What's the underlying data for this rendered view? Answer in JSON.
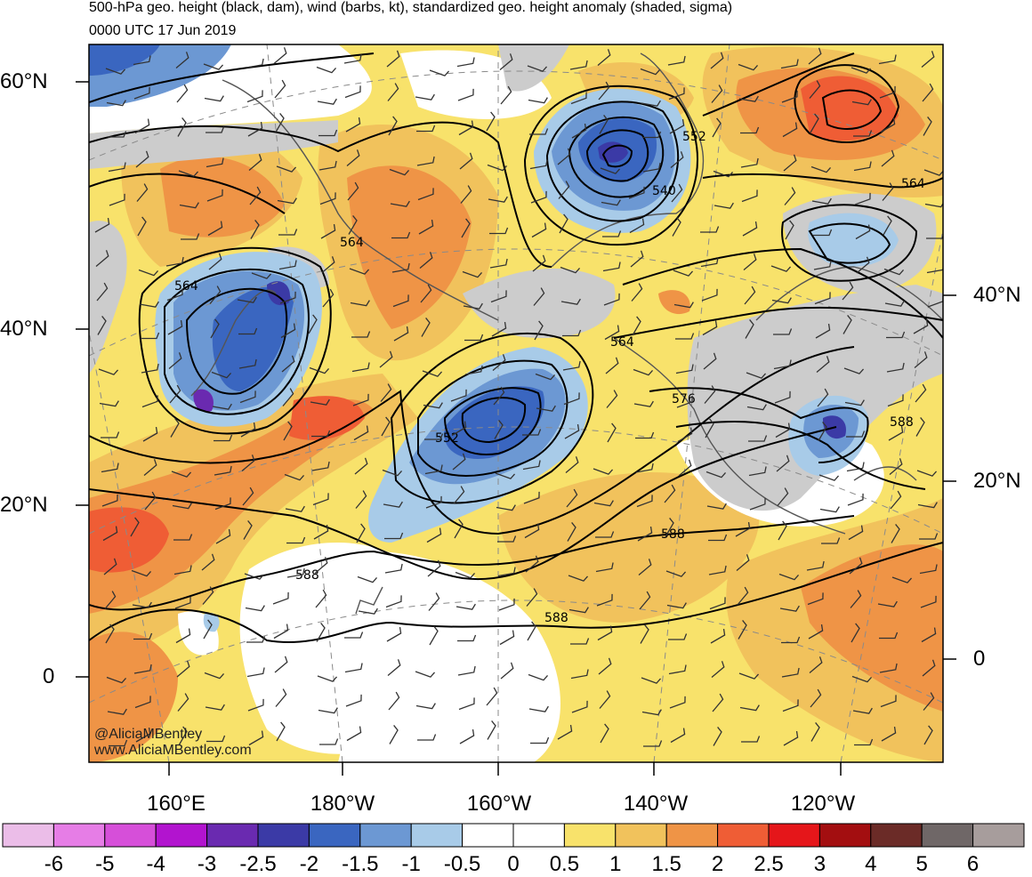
{
  "title": "500-hPa geo. height (black, dam), wind (barbs, kt), standardized geo. height anomaly (shaded, sigma)",
  "valid_time": "0000 UTC 17 Jun 2019",
  "lat_labels": {
    "n60_left": "60°N",
    "n40_left": "40°N",
    "n20_left": "20°N",
    "eq_left": "0",
    "n40_right": "40°N",
    "n20_right": "20°N",
    "eq_right": "0"
  },
  "lon_labels": [
    "160°E",
    "180°W",
    "160°W",
    "140°W",
    "120°W"
  ],
  "contour_labels": [
    "564",
    "564",
    "552",
    "540",
    "564",
    "564",
    "552",
    "576",
    "588",
    "588",
    "588",
    "588"
  ],
  "colorbar": {
    "labels": [
      "-6",
      "-5",
      "-4",
      "-3",
      "-2.5",
      "-2",
      "-1.5",
      "-1",
      "-0.5",
      "0",
      "0.5",
      "1",
      "1.5",
      "2",
      "2.5",
      "3",
      "4",
      "5",
      "6"
    ],
    "colors": [
      "#ebbde8",
      "#e67de6",
      "#d64fd9",
      "#b214cf",
      "#6a2ab0",
      "#3b3aa6",
      "#3a66c0",
      "#6c98d3",
      "#a8cbe8",
      "#ffffff",
      "#ffffff",
      "#f8e26b",
      "#f1c25c",
      "#ef9446",
      "#ef5d35",
      "#e5161a",
      "#a30e10",
      "#6b2b27",
      "#6f6767",
      "#a79d9c"
    ]
  },
  "credit": {
    "handle": "@AliciaMBentley",
    "site": "www.AliciaMBentley.com"
  },
  "colors": {
    "positive_warm": "#f1c25c",
    "negative_cool": "#6c98d3",
    "land_gray": "#cccccc"
  }
}
